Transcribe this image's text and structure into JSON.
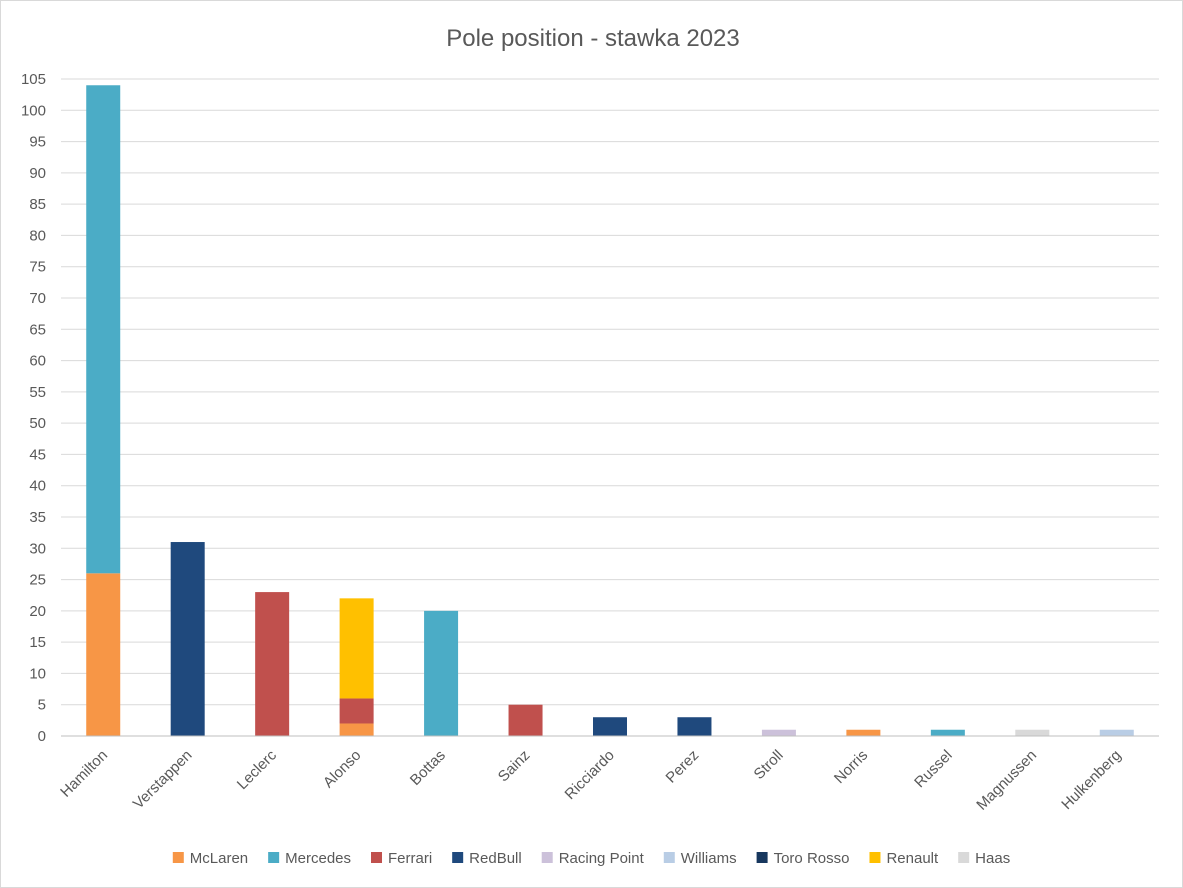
{
  "chart_data": {
    "type": "bar",
    "stacked": true,
    "title": "Pole position - stawka 2023",
    "xlabel": "",
    "ylabel": "",
    "ylim": [
      0,
      105
    ],
    "ytick_step": 5,
    "grid": true,
    "legend_position": "bottom",
    "categories": [
      "Hamilton",
      "Verstappen",
      "Leclerc",
      "Alonso",
      "Bottas",
      "Sainz",
      "Ricciardo",
      "Perez",
      "Stroll",
      "Norris",
      "Russel",
      "Magnussen",
      "Hulkenberg"
    ],
    "series": [
      {
        "name": "McLaren",
        "color": "#F79646",
        "values": [
          26,
          0,
          0,
          2,
          0,
          0,
          0,
          0,
          0,
          1,
          0,
          0,
          0
        ]
      },
      {
        "name": "Mercedes",
        "color": "#4BACC6",
        "values": [
          78,
          0,
          0,
          0,
          20,
          0,
          0,
          0,
          0,
          0,
          1,
          0,
          0
        ]
      },
      {
        "name": "Ferrari",
        "color": "#C0504D",
        "values": [
          0,
          0,
          23,
          4,
          0,
          5,
          0,
          0,
          0,
          0,
          0,
          0,
          0
        ]
      },
      {
        "name": "RedBull",
        "color": "#1F497D",
        "values": [
          0,
          31,
          0,
          0,
          0,
          0,
          3,
          3,
          0,
          0,
          0,
          0,
          0
        ]
      },
      {
        "name": "Racing Point",
        "color": "#CCC1DA",
        "values": [
          0,
          0,
          0,
          0,
          0,
          0,
          0,
          0,
          1,
          0,
          0,
          0,
          0
        ]
      },
      {
        "name": "Williams",
        "color": "#B9CDE5",
        "values": [
          0,
          0,
          0,
          0,
          0,
          0,
          0,
          0,
          0,
          0,
          0,
          0,
          1
        ]
      },
      {
        "name": "Toro Rosso",
        "color": "#17375E",
        "values": [
          0,
          0,
          0,
          0,
          0,
          0,
          0,
          0,
          0,
          0,
          0,
          0,
          0
        ]
      },
      {
        "name": "Renault",
        "color": "#FFC000",
        "values": [
          0,
          0,
          0,
          16,
          0,
          0,
          0,
          0,
          0,
          0,
          0,
          0,
          0
        ]
      },
      {
        "name": "Haas",
        "color": "#D9D9D9",
        "values": [
          0,
          0,
          0,
          0,
          0,
          0,
          0,
          0,
          0,
          0,
          0,
          1,
          0
        ]
      }
    ]
  }
}
